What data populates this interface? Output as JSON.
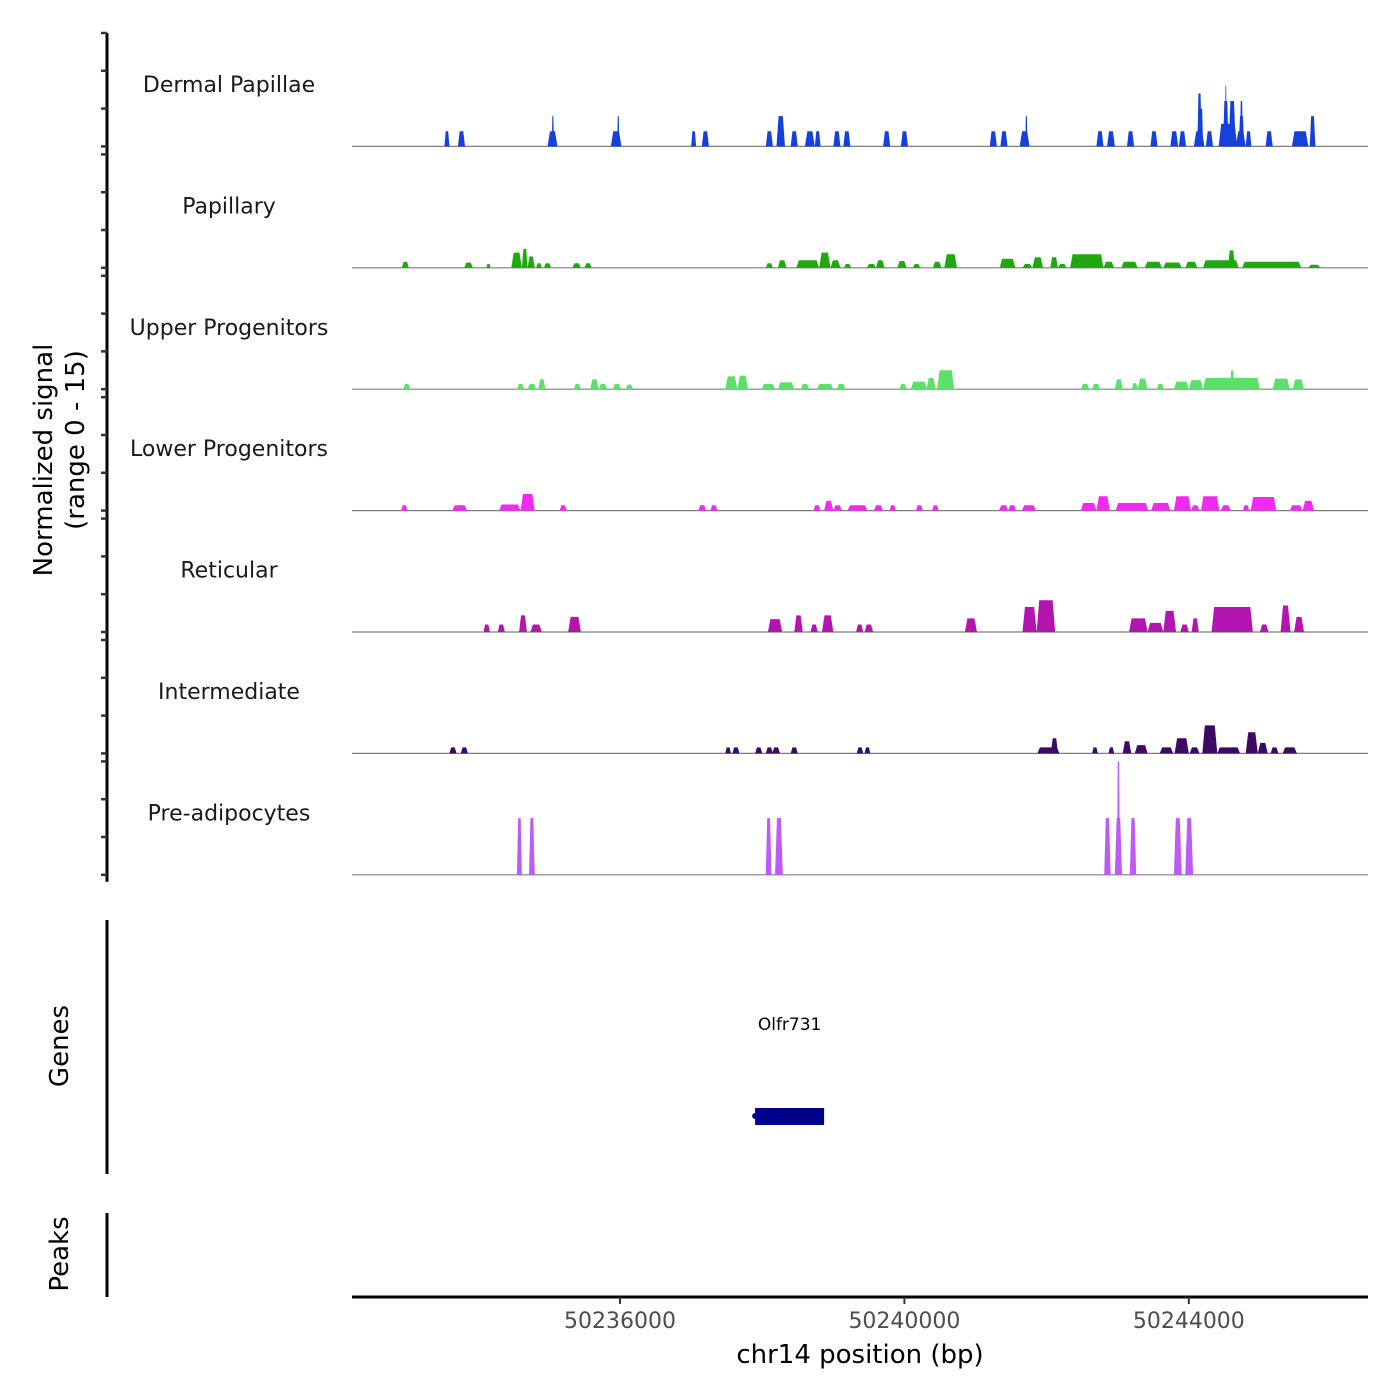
{
  "chart_data": {
    "type": "area",
    "title": "",
    "ylabel_line1": "Normalized signal",
    "ylabel_line2": "(range 0 - 15)",
    "xlabel": "chr14 position (bp)",
    "chromosome": "chr14",
    "ylim": [
      0,
      15
    ],
    "xlim": [
      50232230,
      50246520
    ],
    "x_ticks": [
      50236000,
      50240000,
      50244000
    ],
    "x_tick_labels": [
      "50236000",
      "50240000",
      "50244000"
    ],
    "grid": false,
    "series": [
      {
        "name": "Dermal Papillae",
        "color": "#1540DC",
        "peaks": [
          [
            50233530,
            50233600,
            2
          ],
          [
            50233720,
            50233820,
            2
          ],
          [
            50234980,
            50235120,
            2
          ],
          [
            50235040,
            50235070,
            4
          ],
          [
            50235870,
            50236020,
            2
          ],
          [
            50235960,
            50235990,
            4
          ],
          [
            50237000,
            50237070,
            2
          ],
          [
            50237150,
            50237250,
            2
          ],
          [
            50238050,
            50238150,
            2
          ],
          [
            50238200,
            50238320,
            4
          ],
          [
            50238400,
            50238500,
            2
          ],
          [
            50238600,
            50238740,
            2
          ],
          [
            50238740,
            50238820,
            2
          ],
          [
            50239000,
            50239100,
            2
          ],
          [
            50239140,
            50239240,
            2
          ],
          [
            50239700,
            50239800,
            2
          ],
          [
            50239950,
            50240050,
            2
          ],
          [
            50241200,
            50241300,
            2
          ],
          [
            50241350,
            50241450,
            2
          ],
          [
            50241620,
            50241760,
            2
          ],
          [
            50241700,
            50241730,
            4
          ],
          [
            50242700,
            50242800,
            2
          ],
          [
            50242850,
            50242960,
            2
          ],
          [
            50243130,
            50243230,
            2
          ],
          [
            50243460,
            50243560,
            2
          ],
          [
            50243740,
            50243850,
            2
          ],
          [
            50243860,
            50243960,
            2
          ],
          [
            50244070,
            50244220,
            2
          ],
          [
            50244150,
            50244200,
            5
          ],
          [
            50244120,
            50244180,
            7
          ],
          [
            50244240,
            50244340,
            2
          ],
          [
            50244420,
            50244680,
            3
          ],
          [
            50244480,
            50244560,
            6
          ],
          [
            50244510,
            50244530,
            8
          ],
          [
            50244560,
            50244660,
            6
          ],
          [
            50244660,
            50244800,
            2
          ],
          [
            50244700,
            50244780,
            4
          ],
          [
            50244720,
            50244760,
            6
          ],
          [
            50244800,
            50244880,
            2
          ],
          [
            50245080,
            50245180,
            2
          ],
          [
            50245450,
            50245680,
            2
          ],
          [
            50245700,
            50245780,
            4
          ]
        ]
      },
      {
        "name": "Papillary",
        "color": "#1FA80F",
        "peaks": [
          [
            50232930,
            50233030,
            0.8
          ],
          [
            50233810,
            50233930,
            0.7
          ],
          [
            50234120,
            50234180,
            0.5
          ],
          [
            50234470,
            50234620,
            2
          ],
          [
            50234620,
            50234700,
            2.5
          ],
          [
            50234700,
            50234800,
            1.5
          ],
          [
            50234820,
            50234900,
            0.6
          ],
          [
            50234930,
            50235030,
            0.6
          ],
          [
            50235330,
            50235450,
            0.6
          ],
          [
            50235500,
            50235600,
            0.6
          ],
          [
            50238050,
            50238150,
            0.6
          ],
          [
            50238220,
            50238340,
            1
          ],
          [
            50238480,
            50238800,
            1
          ],
          [
            50238800,
            50238960,
            2
          ],
          [
            50238960,
            50239100,
            1
          ],
          [
            50239150,
            50239250,
            0.5
          ],
          [
            50239470,
            50239600,
            0.5
          ],
          [
            50239600,
            50239720,
            1
          ],
          [
            50239900,
            50240030,
            0.9
          ],
          [
            50240120,
            50240220,
            0.5
          ],
          [
            50240400,
            50240520,
            0.8
          ],
          [
            50240560,
            50240740,
            1.8
          ],
          [
            50241340,
            50241560,
            1.2
          ],
          [
            50241660,
            50241800,
            0.5
          ],
          [
            50241800,
            50241950,
            1.4
          ],
          [
            50242050,
            50242160,
            1.4
          ],
          [
            50242160,
            50242280,
            0.5
          ],
          [
            50242330,
            50242800,
            1.8
          ],
          [
            50242800,
            50242950,
            0.8
          ],
          [
            50243050,
            50243280,
            0.8
          ],
          [
            50243380,
            50243620,
            0.8
          ],
          [
            50243640,
            50243900,
            0.7
          ],
          [
            50243950,
            50244120,
            0.8
          ],
          [
            50244200,
            50244700,
            1
          ],
          [
            50244550,
            50244650,
            2.3
          ],
          [
            50244750,
            50245580,
            0.8
          ],
          [
            50245680,
            50245850,
            0.4
          ]
        ]
      },
      {
        "name": "Upper Progenitors",
        "color": "#5CDF6B",
        "peaks": [
          [
            50232950,
            50233050,
            0.7
          ],
          [
            50234550,
            50234650,
            0.7
          ],
          [
            50234700,
            50234820,
            0.7
          ],
          [
            50234850,
            50234950,
            1.3
          ],
          [
            50235350,
            50235450,
            0.7
          ],
          [
            50235580,
            50235700,
            1.3
          ],
          [
            50235700,
            50235820,
            0.7
          ],
          [
            50235900,
            50236010,
            0.7
          ],
          [
            50236080,
            50236180,
            0.6
          ],
          [
            50237480,
            50237650,
            1.7
          ],
          [
            50237650,
            50237800,
            1.8
          ],
          [
            50237990,
            50238180,
            0.7
          ],
          [
            50238220,
            50238450,
            0.9
          ],
          [
            50238540,
            50238660,
            0.7
          ],
          [
            50238770,
            50239000,
            0.7
          ],
          [
            50239050,
            50239170,
            0.7
          ],
          [
            50239930,
            50240030,
            0.7
          ],
          [
            50240090,
            50240320,
            1
          ],
          [
            50240310,
            50240440,
            1.5
          ],
          [
            50240460,
            50240700,
            2.5
          ],
          [
            50242480,
            50242600,
            0.7
          ],
          [
            50242640,
            50242750,
            0.7
          ],
          [
            50242960,
            50243070,
            1.3
          ],
          [
            50243200,
            50243280,
            0.8
          ],
          [
            50243280,
            50243420,
            1.4
          ],
          [
            50243550,
            50243650,
            0.7
          ],
          [
            50243790,
            50244000,
            1
          ],
          [
            50244000,
            50244200,
            1.2
          ],
          [
            50244200,
            50245000,
            1.5
          ],
          [
            50244580,
            50244640,
            2.5
          ],
          [
            50245180,
            50245420,
            1.4
          ],
          [
            50245460,
            50245620,
            1.3
          ]
        ]
      },
      {
        "name": "Lower Progenitors",
        "color": "#F02AF0",
        "peaks": [
          [
            50232920,
            50233010,
            0.7
          ],
          [
            50233640,
            50233850,
            0.7
          ],
          [
            50234300,
            50234600,
            0.8
          ],
          [
            50234600,
            50234800,
            2.2
          ],
          [
            50235150,
            50235250,
            0.7
          ],
          [
            50237100,
            50237210,
            0.7
          ],
          [
            50237270,
            50237370,
            0.7
          ],
          [
            50238720,
            50238820,
            0.7
          ],
          [
            50238870,
            50239000,
            1.3
          ],
          [
            50239000,
            50239120,
            0.7
          ],
          [
            50239200,
            50239480,
            0.7
          ],
          [
            50239570,
            50239700,
            0.7
          ],
          [
            50239790,
            50239880,
            0.7
          ],
          [
            50240160,
            50240260,
            0.7
          ],
          [
            50240390,
            50240480,
            0.7
          ],
          [
            50241330,
            50241460,
            0.7
          ],
          [
            50241460,
            50241570,
            0.7
          ],
          [
            50241650,
            50241850,
            0.7
          ],
          [
            50242480,
            50242700,
            1
          ],
          [
            50242700,
            50242890,
            1.9
          ],
          [
            50242970,
            50243430,
            1
          ],
          [
            50243470,
            50243740,
            1
          ],
          [
            50243790,
            50244030,
            1.9
          ],
          [
            50244030,
            50244150,
            0.7
          ],
          [
            50244170,
            50244430,
            1.9
          ],
          [
            50244450,
            50244590,
            0.7
          ],
          [
            50244760,
            50244850,
            0.7
          ],
          [
            50244870,
            50245230,
            1.8
          ],
          [
            50245420,
            50245600,
            0.7
          ],
          [
            50245600,
            50245760,
            1.3
          ]
        ]
      },
      {
        "name": "Reticular",
        "color": "#B415B0",
        "peaks": [
          [
            50234080,
            50234170,
            1
          ],
          [
            50234280,
            50234380,
            1
          ],
          [
            50234580,
            50234690,
            2.2
          ],
          [
            50234740,
            50234900,
            1
          ],
          [
            50235270,
            50235450,
            2
          ],
          [
            50238080,
            50238280,
            1.7
          ],
          [
            50238450,
            50238570,
            2.2
          ],
          [
            50238680,
            50238780,
            1
          ],
          [
            50238840,
            50239000,
            2.2
          ],
          [
            50239320,
            50239420,
            1
          ],
          [
            50239440,
            50239560,
            1
          ],
          [
            50240850,
            50241020,
            1.8
          ],
          [
            50241660,
            50241860,
            3.3
          ],
          [
            50241860,
            50242120,
            4.2
          ],
          [
            50243160,
            50243420,
            1.8
          ],
          [
            50243420,
            50243640,
            1.2
          ],
          [
            50243640,
            50243820,
            2.8
          ],
          [
            50243880,
            50244000,
            1
          ],
          [
            50244040,
            50244140,
            1.8
          ],
          [
            50244320,
            50244900,
            3.3
          ],
          [
            50245000,
            50245120,
            1
          ],
          [
            50245290,
            50245430,
            3.5
          ],
          [
            50245480,
            50245620,
            2
          ]
        ]
      },
      {
        "name": "Intermediate",
        "color": "#3C0A62",
        "peaks": [
          [
            50233600,
            50233700,
            0.8
          ],
          [
            50233760,
            50233860,
            0.8
          ],
          [
            50237480,
            50237560,
            0.8
          ],
          [
            50237580,
            50237680,
            0.8
          ],
          [
            50237900,
            50238000,
            0.8
          ],
          [
            50238050,
            50238150,
            0.8
          ],
          [
            50238140,
            50238250,
            0.8
          ],
          [
            50238400,
            50238500,
            0.8
          ],
          [
            50239330,
            50239420,
            0.8
          ],
          [
            50239440,
            50239520,
            0.8
          ],
          [
            50241870,
            50242180,
            0.8
          ],
          [
            50242060,
            50242160,
            2
          ],
          [
            50242640,
            50242720,
            0.8
          ],
          [
            50242870,
            50242950,
            0.8
          ],
          [
            50243070,
            50243190,
            1.6
          ],
          [
            50243240,
            50243420,
            1.1
          ],
          [
            50243590,
            50243780,
            0.8
          ],
          [
            50243800,
            50244000,
            2
          ],
          [
            50244010,
            50244150,
            0.8
          ],
          [
            50244190,
            50244400,
            3.7
          ],
          [
            50244400,
            50244720,
            0.8
          ],
          [
            50244800,
            50244970,
            2.8
          ],
          [
            50244970,
            50245110,
            1.4
          ],
          [
            50245150,
            50245260,
            0.8
          ],
          [
            50245320,
            50245520,
            0.8
          ]
        ]
      },
      {
        "name": "Pre-adipocytes",
        "color": "#BE5AF5",
        "peaks": [
          [
            50234550,
            50234620,
            7.5
          ],
          [
            50234720,
            50234800,
            7.5
          ],
          [
            50238050,
            50238130,
            7.5
          ],
          [
            50238180,
            50238290,
            7.5
          ],
          [
            50242810,
            50242900,
            7.5
          ],
          [
            50242960,
            50243060,
            7.5
          ],
          [
            50242990,
            50243030,
            15
          ],
          [
            50243170,
            50243260,
            7.5
          ],
          [
            50243790,
            50243900,
            7.5
          ],
          [
            50243950,
            50244060,
            7.5
          ]
        ]
      }
    ],
    "genes_track": {
      "label": "Genes",
      "genes": [
        {
          "name": "Olfr731",
          "start": 50237900,
          "end": 50238870,
          "color": "#00008B"
        }
      ]
    },
    "peaks_track": {
      "label": "Peaks",
      "peaks": []
    },
    "baseline_color": "#7f7f7f"
  }
}
